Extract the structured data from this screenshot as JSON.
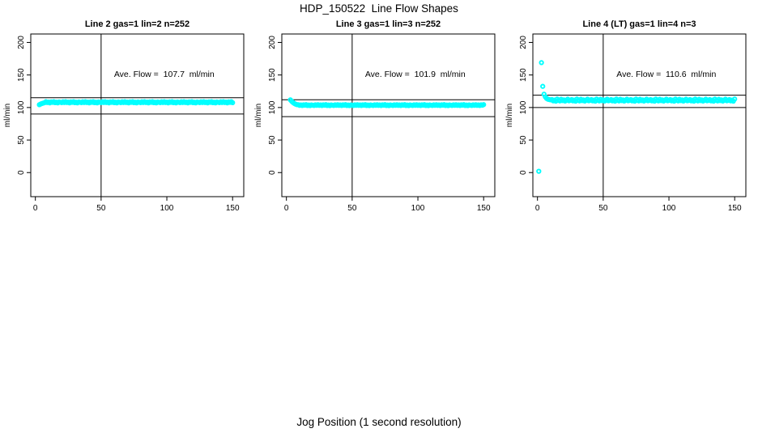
{
  "figure": {
    "title": "HDP_150522  Line Flow Shapes",
    "xlabel": "Jog Position (1 second resolution)",
    "background": "#ffffff",
    "point_color": "#00ffff",
    "line_color": "#000000",
    "text_color": "#000000"
  },
  "chart_data": {
    "type": "scatter",
    "title": "HDP_150522  Line Flow Shapes",
    "xlabel": "Jog Position (1 second resolution)",
    "ylabel": "ml/min",
    "x_ticks": [
      0,
      50,
      100,
      150
    ],
    "y_ticks": [
      0,
      50,
      100,
      150,
      200
    ],
    "xlim": [
      -3.5,
      158.5
    ],
    "ylim": [
      -37,
      213
    ],
    "grid": false,
    "vline_x": 50,
    "point_style": "open-circle",
    "panels": [
      {
        "title": "Line 2 gas=1 lin=2 n=252",
        "line": 2,
        "gas": 1,
        "lin": 2,
        "n": 252,
        "ave_flow": 107.7,
        "annotation": "Ave. Flow =  107.7  ml/min",
        "annotation_pos": {
          "x": 98,
          "y": 147
        },
        "hlines": [
          115,
          90
        ],
        "x_start": 3,
        "x_step": 1,
        "y": [
          104.3,
          105.4,
          106.2,
          106.8,
          107.4,
          108.9,
          107.6,
          108.4,
          107.2,
          108.7,
          107.9,
          109.0,
          107.4,
          108.2,
          107.1,
          108.5,
          108.0,
          107.5,
          108.8,
          107.7,
          108.9,
          107.6,
          108.4,
          107.2,
          108.7,
          107.9,
          109.0,
          107.4,
          108.2,
          107.1,
          108.5,
          108.0,
          107.5,
          108.8,
          107.7,
          108.9,
          107.6,
          108.4,
          107.2,
          108.7,
          107.9,
          109.0,
          107.4,
          108.2,
          107.1,
          108.5,
          108.0,
          107.5,
          108.8,
          107.7,
          108.9,
          107.6,
          108.4,
          107.2,
          108.7,
          107.9,
          109.0,
          107.4,
          108.2,
          107.1,
          108.5,
          108.0,
          107.5,
          108.8,
          107.7,
          108.9,
          107.6,
          108.4,
          107.2,
          108.7,
          107.9,
          109.0,
          107.4,
          108.2,
          107.1,
          108.5,
          108.0,
          107.5,
          108.8,
          107.7,
          108.9,
          107.6,
          108.4,
          107.2,
          108.7,
          107.9,
          109.0,
          107.4,
          108.2,
          107.1,
          108.5,
          108.0,
          107.5,
          108.8,
          107.7,
          108.9,
          107.6,
          108.4,
          107.2,
          108.7,
          107.9,
          109.0,
          107.4,
          108.2,
          107.1,
          108.5,
          108.0,
          107.5,
          108.8,
          107.7,
          108.9,
          107.6,
          108.4,
          107.2,
          108.7,
          107.9,
          109.0,
          107.4,
          108.2,
          107.1,
          108.5,
          108.0,
          107.5,
          108.8,
          107.7,
          108.9,
          107.6,
          108.4,
          107.2,
          108.7,
          107.9,
          109.0,
          107.4,
          108.2,
          107.1,
          108.5,
          108.0,
          107.5,
          108.8,
          107.7,
          108.9,
          107.6,
          108.4,
          107.2,
          108.7,
          107.9,
          109.0,
          107.4
        ],
        "extra_points": []
      },
      {
        "title": "Line 3 gas=1 lin=3 n=252",
        "line": 3,
        "gas": 1,
        "lin": 3,
        "n": 252,
        "ave_flow": 101.9,
        "annotation": "Ave. Flow =  101.9  ml/min",
        "annotation_pos": {
          "x": 98,
          "y": 147
        },
        "hlines": [
          112,
          86
        ],
        "x_start": 3,
        "x_step": 1,
        "y": [
          111.8,
          109.5,
          107.8,
          106.3,
          105.2,
          104.4,
          104.3,
          103.3,
          103.9,
          103.0,
          104.2,
          103.5,
          104.4,
          103.1,
          103.8,
          102.9,
          104.0,
          103.6,
          103.2,
          104.2,
          103.4,
          104.3,
          103.3,
          103.9,
          103.0,
          104.2,
          103.5,
          104.4,
          103.1,
          103.8,
          102.9,
          104.0,
          103.6,
          103.2,
          104.2,
          103.4,
          104.3,
          103.3,
          103.9,
          103.0,
          104.2,
          103.5,
          104.4,
          103.1,
          103.8,
          102.9,
          104.0,
          103.6,
          103.2,
          104.2,
          103.4,
          104.3,
          103.3,
          103.9,
          103.0,
          104.2,
          103.5,
          104.4,
          103.1,
          103.8,
          102.9,
          104.0,
          103.6,
          103.2,
          104.2,
          103.4,
          104.3,
          103.3,
          103.9,
          103.0,
          104.2,
          103.5,
          104.4,
          103.1,
          103.8,
          102.9,
          104.0,
          103.6,
          103.2,
          104.2,
          103.4,
          104.3,
          103.3,
          103.9,
          103.0,
          104.2,
          103.5,
          104.4,
          103.1,
          103.8,
          102.9,
          104.0,
          103.6,
          103.2,
          104.2,
          103.4,
          104.3,
          103.3,
          103.9,
          103.0,
          104.2,
          103.5,
          104.4,
          103.1,
          103.8,
          102.9,
          104.0,
          103.6,
          103.2,
          104.2,
          103.4,
          104.3,
          103.3,
          103.9,
          103.0,
          104.2,
          103.5,
          104.4,
          103.1,
          103.8,
          102.9,
          104.0,
          103.6,
          103.2,
          104.2,
          103.4,
          104.3,
          103.3,
          103.9,
          103.0,
          104.2,
          103.5,
          104.4,
          103.1,
          103.8,
          102.9,
          104.0,
          103.6,
          103.2,
          104.2,
          103.4,
          104.3,
          103.3,
          103.9,
          103.0,
          104.2,
          103.5,
          104.4
        ],
        "extra_points": []
      },
      {
        "title": "Line 4 (LT) gas=1 lin=4 n=3",
        "line": 4,
        "line_note": "LT",
        "gas": 1,
        "lin": 4,
        "n": 3,
        "ave_flow": 110.6,
        "annotation": "Ave. Flow =  110.6  ml/min",
        "annotation_pos": {
          "x": 98,
          "y": 147
        },
        "hlines": [
          119,
          100
        ],
        "x_start": 3,
        "x_step": 1,
        "y": [
          169.0,
          132.5,
          120.5,
          116.5,
          114.0,
          112.8,
          112.2,
          111.8,
          112.3,
          110.3,
          111.5,
          109.8,
          113.0,
          111.1,
          110.1,
          112.6,
          110.6,
          111.8,
          109.9,
          111.3,
          112.9,
          110.4,
          111.0,
          112.3,
          110.3,
          111.5,
          109.8,
          113.0,
          111.1,
          110.1,
          112.6,
          110.6,
          111.8,
          109.9,
          111.3,
          112.9,
          110.4,
          111.0,
          112.3,
          110.3,
          111.5,
          109.8,
          113.0,
          111.1,
          110.1,
          112.6,
          110.6,
          111.8,
          109.9,
          111.3,
          112.9,
          110.4,
          111.0,
          112.3,
          110.3,
          111.5,
          109.8,
          113.0,
          111.1,
          110.1,
          112.6,
          110.6,
          111.8,
          109.9,
          111.3,
          112.9,
          110.4,
          111.0,
          112.3,
          110.3,
          111.5,
          109.8,
          113.0,
          111.1,
          110.1,
          112.6,
          110.6,
          111.8,
          109.9,
          111.3,
          112.9,
          110.4,
          111.0,
          112.3,
          110.3,
          111.5,
          109.8,
          113.0,
          111.1,
          110.1,
          112.6,
          110.6,
          111.8,
          109.9,
          111.3,
          112.9,
          110.4,
          111.0,
          112.3,
          110.3,
          111.5,
          109.8,
          113.0,
          111.1,
          110.1,
          112.6,
          110.6,
          111.8,
          109.9,
          111.3,
          112.9,
          110.4,
          111.0,
          112.3,
          110.3,
          111.5,
          109.8,
          113.0,
          111.1,
          110.1,
          112.6,
          110.6,
          111.8,
          109.9,
          111.3,
          112.9,
          110.4,
          111.0,
          112.3,
          110.3,
          111.5,
          109.8,
          113.0,
          111.1,
          110.1,
          112.6,
          110.6,
          111.8,
          109.9,
          111.3,
          112.9,
          110.4,
          111.0,
          112.3,
          110.3,
          111.5,
          109.8,
          113.0
        ],
        "extra_points": [
          [
            1,
            2.0
          ]
        ]
      }
    ]
  }
}
